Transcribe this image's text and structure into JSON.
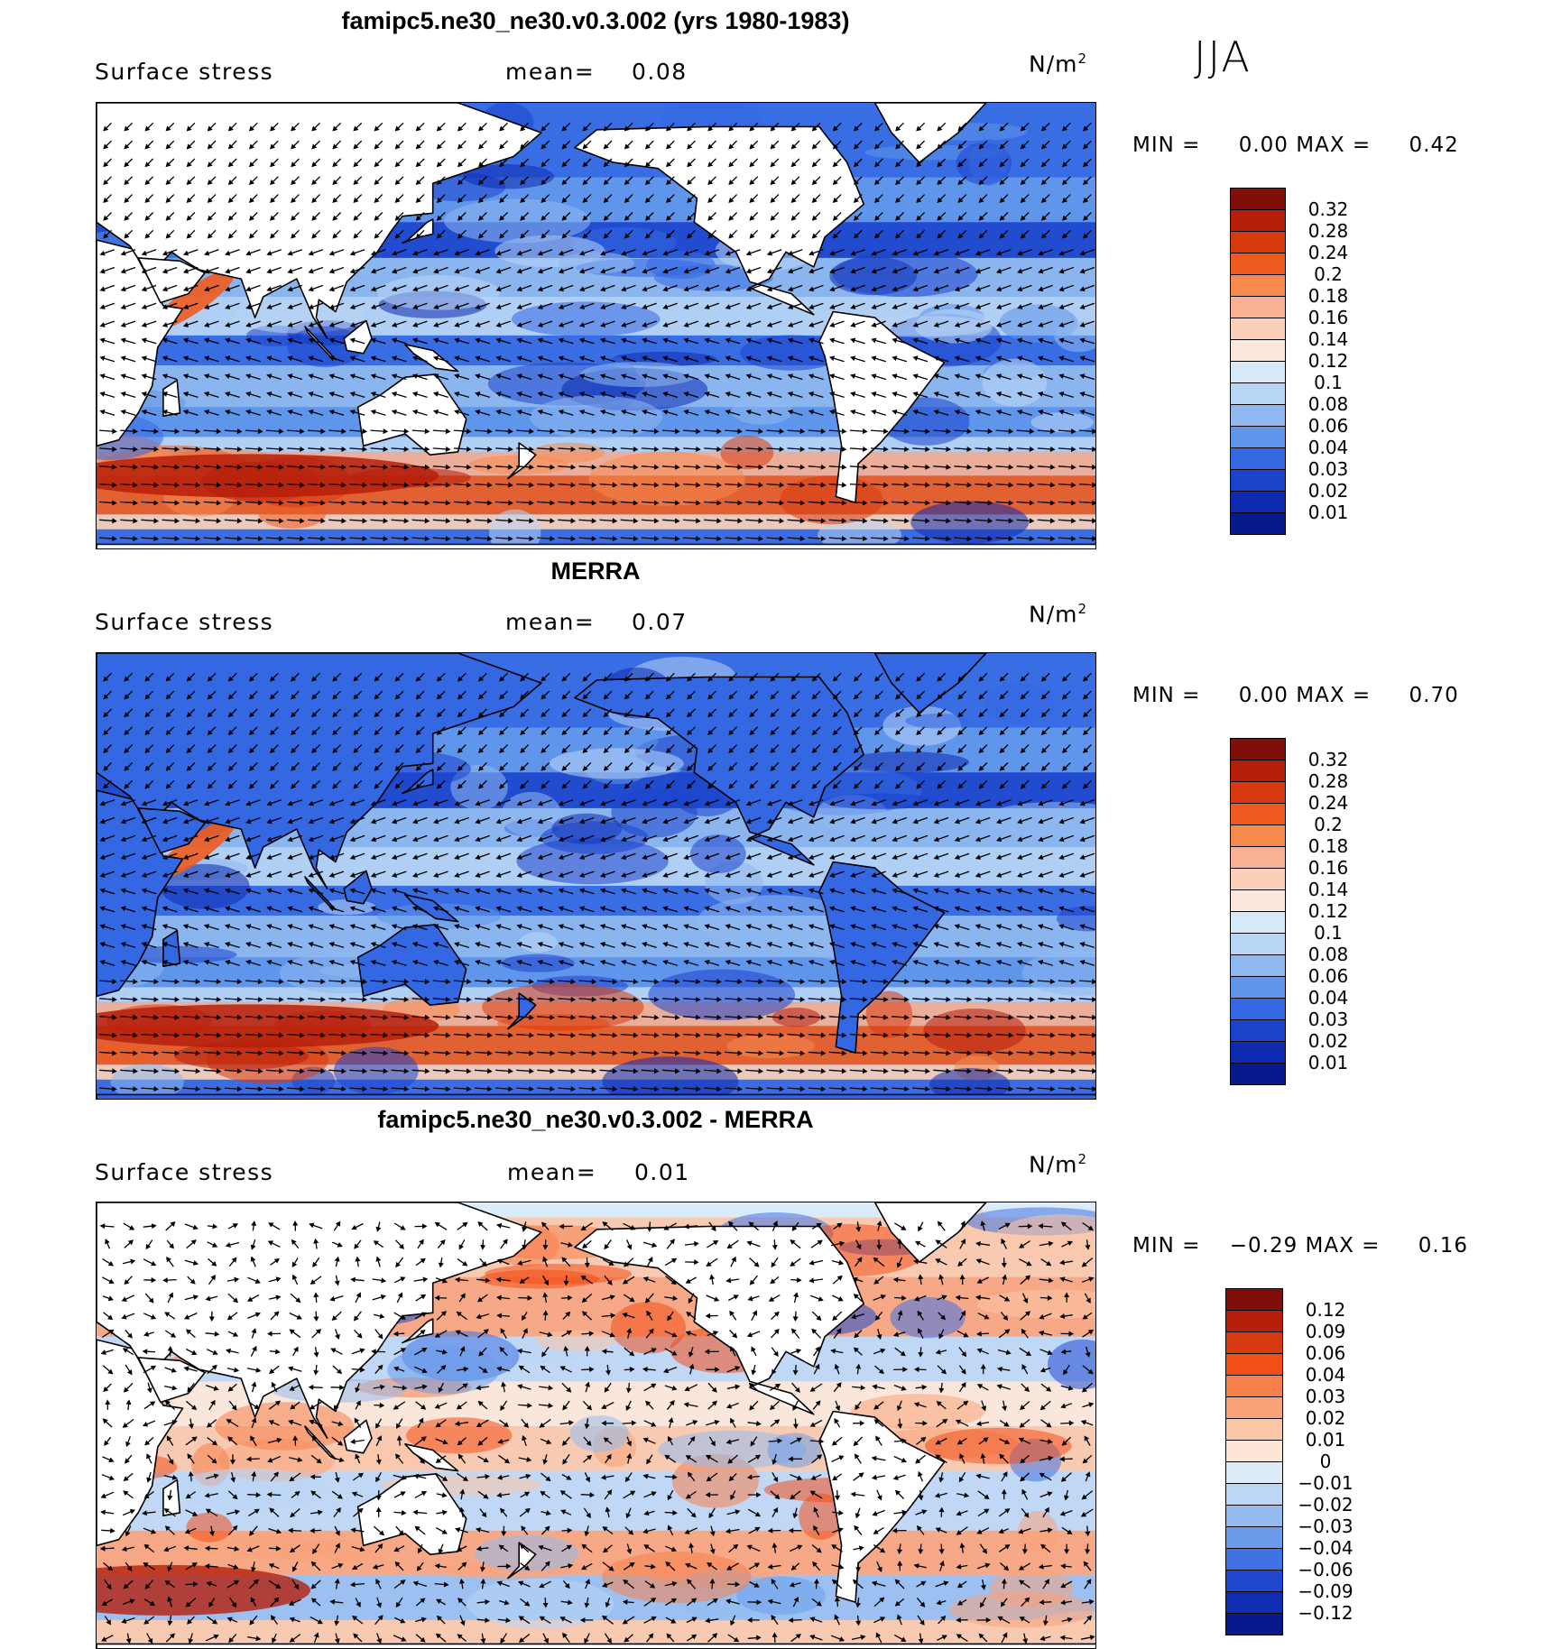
{
  "season": "JJA",
  "panels": [
    {
      "title": "famipc5.ne30_ne30.v0.3.002 (yrs 1980-1983)",
      "variable": "Surface stress",
      "mean_label": "mean=",
      "mean_value": "0.08",
      "units": "N/m",
      "units_exp": "2",
      "min_label": "MIN =",
      "min_value": "0.00",
      "max_label": "MAX =",
      "max_value": "0.42",
      "map": {
        "kind": "model",
        "scale": "sequential"
      },
      "colorbar": {
        "levels": [
          "0.32",
          "0.28",
          "0.24",
          "0.2",
          "0.18",
          "0.16",
          "0.14",
          "0.12",
          "0.1",
          "0.08",
          "0.06",
          "0.04",
          "0.03",
          "0.02",
          "0.01"
        ],
        "colors": [
          "#7f0f08",
          "#b51e0b",
          "#d83a10",
          "#ef5b1f",
          "#f88a4e",
          "#fab092",
          "#fbcfb8",
          "#fde9dc",
          "#d6e9f8",
          "#b9d5f5",
          "#8fb8f0",
          "#5f95ea",
          "#3468e2",
          "#1b44cc",
          "#0d2ab0",
          "#061a8c"
        ]
      }
    },
    {
      "title": "MERRA",
      "variable": "Surface stress",
      "mean_label": "mean=",
      "mean_value": "0.07",
      "units": "N/m",
      "units_exp": "2",
      "min_label": "MIN =",
      "min_value": "0.00",
      "max_label": "MAX =",
      "max_value": "0.70",
      "map": {
        "kind": "obs",
        "scale": "sequential"
      },
      "colorbar": {
        "levels": [
          "0.32",
          "0.28",
          "0.24",
          "0.2",
          "0.18",
          "0.16",
          "0.14",
          "0.12",
          "0.1",
          "0.08",
          "0.06",
          "0.04",
          "0.03",
          "0.02",
          "0.01"
        ],
        "colors": [
          "#7f0f08",
          "#b51e0b",
          "#d83a10",
          "#ef5b1f",
          "#f88a4e",
          "#fab092",
          "#fbcfb8",
          "#fde9dc",
          "#d6e9f8",
          "#b9d5f5",
          "#8fb8f0",
          "#5f95ea",
          "#3468e2",
          "#1b44cc",
          "#0d2ab0",
          "#061a8c"
        ]
      }
    },
    {
      "title": "famipc5.ne30_ne30.v0.3.002 - MERRA",
      "variable": "Surface stress",
      "mean_label": "mean=",
      "mean_value": "0.01",
      "units": "N/m",
      "units_exp": "2",
      "min_label": "MIN =",
      "min_value": "−0.29",
      "max_label": "MAX =",
      "max_value": "0.16",
      "map": {
        "kind": "difference",
        "scale": "diverging"
      },
      "colorbar": {
        "levels": [
          "0.12",
          "0.09",
          "0.06",
          "0.04",
          "0.03",
          "0.02",
          "0.01",
          "0",
          "−0.01",
          "−0.02",
          "−0.03",
          "−0.04",
          "−0.06",
          "−0.09",
          "−0.12"
        ],
        "colors": [
          "#7f0f08",
          "#b51e0b",
          "#d83a10",
          "#f24f17",
          "#f7804a",
          "#f9a27a",
          "#fbc6a8",
          "#fde6d6",
          "#dcebf8",
          "#bcd6f5",
          "#94bbf0",
          "#6a9ceb",
          "#3f72e3",
          "#1f48cf",
          "#0e2db2",
          "#061a8c"
        ]
      }
    }
  ]
}
